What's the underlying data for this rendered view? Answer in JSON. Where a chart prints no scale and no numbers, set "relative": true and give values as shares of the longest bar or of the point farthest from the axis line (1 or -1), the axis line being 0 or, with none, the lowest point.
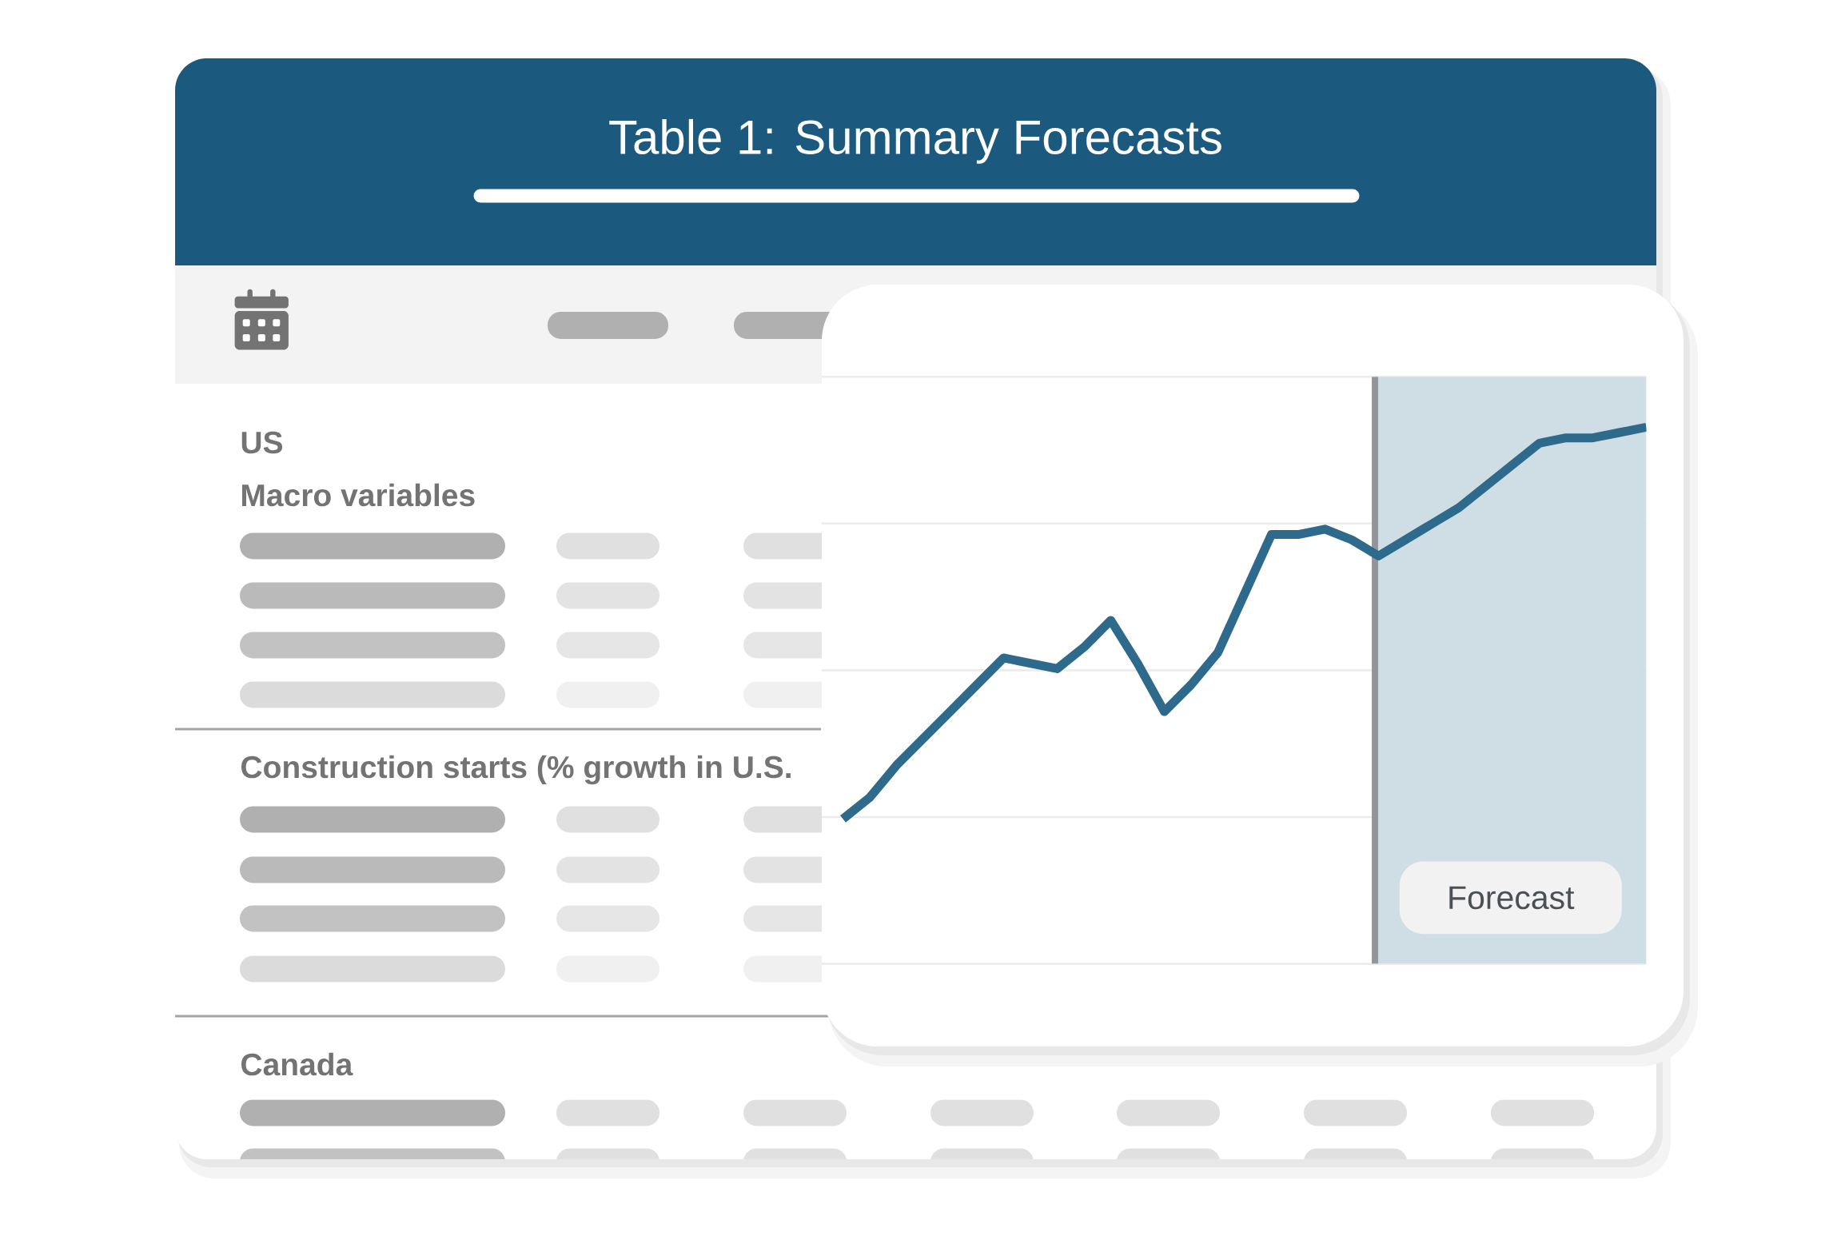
{
  "chart_data": {
    "type": "line",
    "title": "Table 1: Summary Forecasts",
    "annotations": [
      "US",
      "Macro variables",
      "Construction starts (% growth in U.S.",
      "Canada",
      "Forecast"
    ],
    "relative": true,
    "categories": [
      null,
      null,
      null,
      null,
      null,
      null,
      null,
      null,
      null,
      null,
      null,
      null,
      null,
      null,
      null,
      null,
      null,
      null,
      null,
      null,
      null,
      null,
      null,
      null,
      null,
      null,
      null,
      null,
      null,
      null,
      null
    ],
    "series": [
      {
        "color": "#2e6a8b",
        "values": [
          0.27,
          0.31,
          0.37,
          0.42,
          0.47,
          0.52,
          0.57,
          0.56,
          0.55,
          0.59,
          0.64,
          0.56,
          0.47,
          0.52,
          0.58,
          0.69,
          0.8,
          0.8,
          0.81,
          0.79,
          0.76,
          0.79,
          0.82,
          0.85,
          0.89,
          0.93,
          0.97,
          0.98,
          0.98,
          0.99,
          1
        ]
      }
    ],
    "grid": "y",
    "line_style": "solid"
  }
}
